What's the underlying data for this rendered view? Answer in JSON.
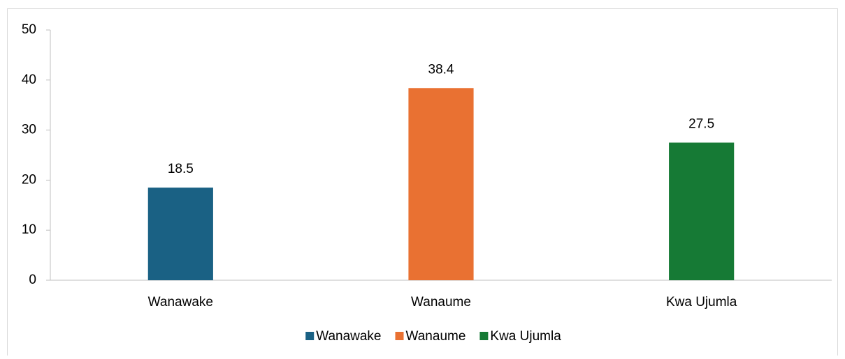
{
  "chart_data": {
    "type": "bar",
    "categories": [
      "Wanawake",
      "Wanaume",
      "Kwa Ujumla"
    ],
    "values": [
      18.5,
      38.4,
      27.5
    ],
    "colors": [
      "#1a6184",
      "#e97132",
      "#167a35"
    ],
    "ylim": [
      0,
      50
    ],
    "yticks": [
      0,
      10,
      20,
      30,
      40,
      50
    ],
    "grid": false,
    "legend": "bottom"
  }
}
